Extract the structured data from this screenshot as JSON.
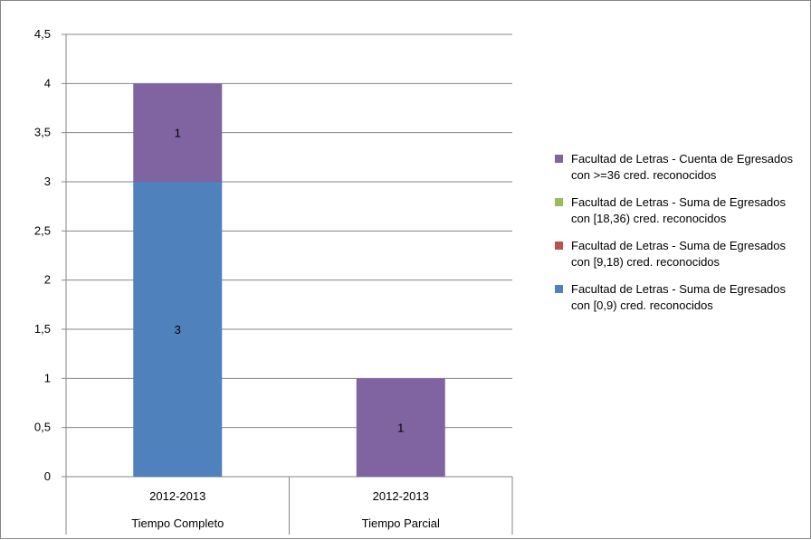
{
  "chart_data": {
    "type": "bar",
    "stacked": true,
    "ylim": [
      0,
      4.5
    ],
    "yticks": [
      "0",
      "0,5",
      "1",
      "1,5",
      "2",
      "2,5",
      "3",
      "3,5",
      "4",
      "4,5"
    ],
    "categories": [
      {
        "year": "2012-2013",
        "group": "Tiempo Completo"
      },
      {
        "year": "2012-2013",
        "group": "Tiempo Parcial"
      }
    ],
    "series": [
      {
        "name": "Facultad de Letras - Suma de Egresados con [0,9) cred. reconocidos",
        "color": "#4F81BD",
        "values": [
          3,
          0
        ],
        "labels": [
          "3",
          ""
        ]
      },
      {
        "name": "Facultad de Letras - Suma de Egresados con [9,18) cred. reconocidos",
        "color": "#C0504D",
        "values": [
          0,
          0
        ],
        "labels": [
          "",
          ""
        ]
      },
      {
        "name": "Facultad de Letras - Suma de Egresados con [18,36) cred. reconocidos",
        "color": "#9BBB59",
        "values": [
          0,
          0
        ],
        "labels": [
          "",
          ""
        ]
      },
      {
        "name": "Facultad de Letras - Cuenta de Egresados con >=36 cred. reconocidos",
        "color": "#8064A2",
        "values": [
          1,
          1
        ],
        "labels": [
          "1",
          "1"
        ]
      }
    ],
    "legend_order": [
      3,
      2,
      1,
      0
    ],
    "grid": true,
    "legend_position": "right"
  }
}
